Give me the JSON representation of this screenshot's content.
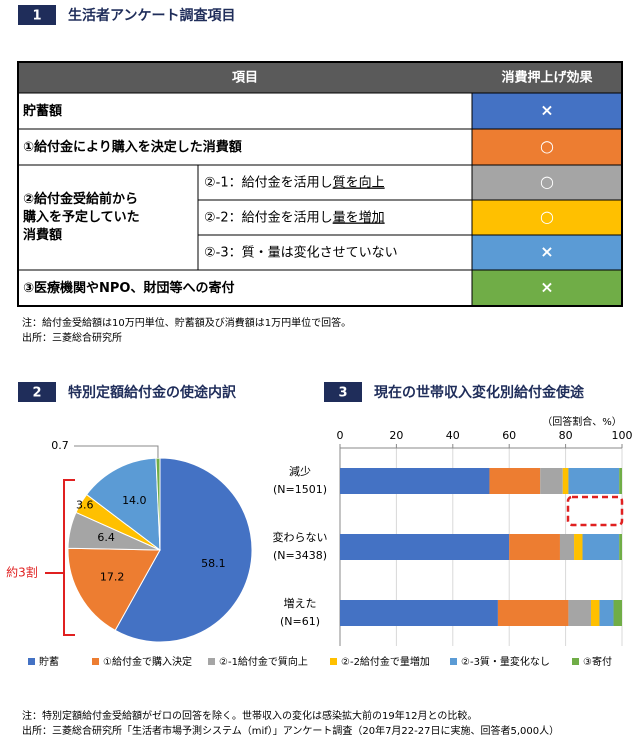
{
  "section1": {
    "number": "1",
    "title": "生活者アンケート調査項目"
  },
  "table": {
    "header": [
      "項目",
      "消費押上げ効果"
    ],
    "rows": [
      {
        "item": [
          "貯蓄額"
        ],
        "effect": "×",
        "color": "#4472c4"
      },
      {
        "item": [
          "①給付金により購入を決定した消費額"
        ],
        "effect": "○",
        "color": "#ed7d31"
      },
      {
        "group": [
          "②給付金受給前から",
          "購入を予定していた",
          "消費額"
        ],
        "subrows": [
          {
            "item": [
              "②-1：給付金を活用し",
              "質を向上"
            ],
            "effect": "○",
            "color": "#a5a5a5"
          },
          {
            "item": [
              "②-2：給付金を活用し",
              "量を増加"
            ],
            "effect": "○",
            "color": "#ffc000"
          },
          {
            "item": [
              "②-3：質・量は変化させていない"
            ],
            "effect": "×",
            "color": "#5b9bd5"
          }
        ]
      },
      {
        "item": [
          "③医療機関やNPO、財団等への寄付"
        ],
        "effect": "×",
        "color": "#70ad47"
      }
    ],
    "note": "注：給付金受給額は10万円単位、貯蓄額及び消費額は1万円単位で回答。",
    "source": "出所：三菱総合研究所"
  },
  "chart_data": [
    {
      "type": "pie",
      "number": "2",
      "title": "特別定額給付金の使途内訳",
      "categories": [
        "貯蓄",
        "①給付金で購入決定",
        "②-1給付金で質向上",
        "②-2給付金で量増加",
        "②-3質・量変化なし",
        "③寄付"
      ],
      "values": [
        58.1,
        17.2,
        6.4,
        3.6,
        14.0,
        0.7
      ],
      "value_labels": [
        "58.1",
        "17.2",
        "6.4",
        "3.6",
        "14.0",
        "0.7"
      ],
      "colors": [
        "#4472c4",
        "#ed7d31",
        "#a5a5a5",
        "#ffc000",
        "#5b9bd5",
        "#70ad47"
      ],
      "annotation": "約3割"
    },
    {
      "type": "stacked-barh",
      "number": "3",
      "title": "現在の世帯収入変化別給付金使途",
      "axis_label": "（回答割合、%）",
      "categories": [
        [
          "減少",
          "(N=1501)"
        ],
        [
          "変わらない",
          "(N=3438)"
        ],
        [
          "増えた",
          "(N=61)"
        ]
      ],
      "xlim": [
        0,
        100
      ],
      "xticks": [
        0,
        20,
        40,
        60,
        80,
        100
      ],
      "grid": true,
      "legend": "bottom",
      "series": [
        {
          "name": "貯蓄",
          "color": "#4472c4",
          "values": [
            53,
            60,
            56
          ]
        },
        {
          "name": "①給付金で購入決定",
          "color": "#ed7d31",
          "values": [
            18,
            18,
            25
          ]
        },
        {
          "name": "②-1給付金で質向上",
          "color": "#a5a5a5",
          "values": [
            8,
            5,
            8
          ]
        },
        {
          "name": "②-2給付金で量増加",
          "color": "#ffc000",
          "values": [
            2,
            3,
            3
          ]
        },
        {
          "name": "②-3質・量変化なし",
          "color": "#5b9bd5",
          "values": [
            18,
            13,
            5
          ]
        },
        {
          "name": "③寄付",
          "color": "#70ad47",
          "values": [
            1,
            1,
            3
          ]
        }
      ]
    }
  ],
  "note2": "注：特別定額給付金受給額がゼロの回答を除く。世帯収入の変化は感染拡大前の19年12月との比較。",
  "source2": "出所：三菱総合研究所「生活者市場予測システム（mif）」アンケート調査（20年7月22-27日に実施、回答者5,000人）"
}
